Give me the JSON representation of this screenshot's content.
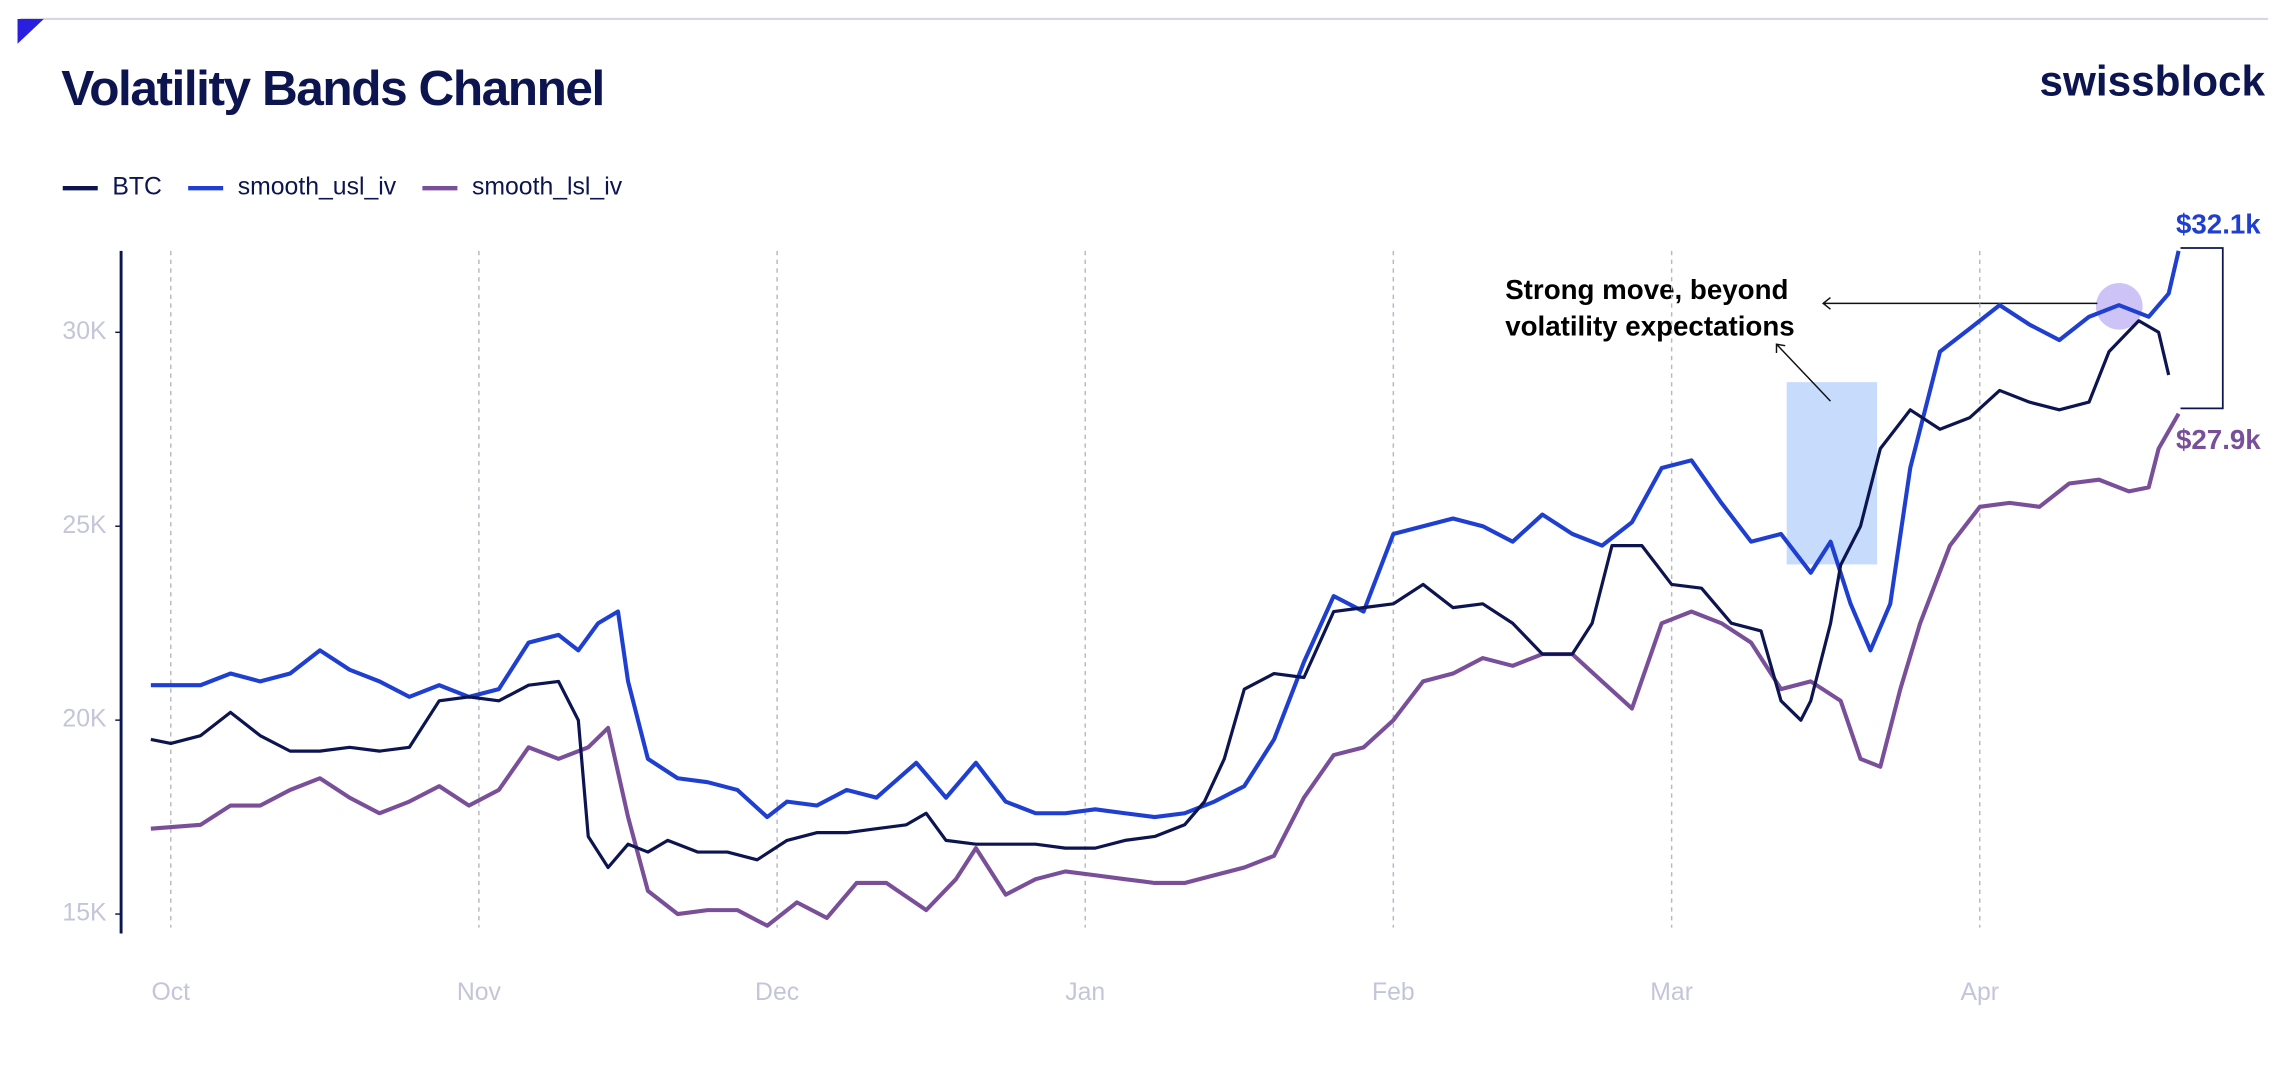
{
  "chart_data": {
    "type": "line",
    "title": "Volatility Bands Channel",
    "brand": "swissblock",
    "annotation": [
      "Strong move, beyond",
      "volatility expectations"
    ],
    "xlim": [
      -5,
      211
    ],
    "xticks": [
      {
        "value": 0,
        "label": "Oct"
      },
      {
        "value": 31,
        "label": "Nov"
      },
      {
        "value": 61,
        "label": "Dec"
      },
      {
        "value": 92,
        "label": "Jan"
      },
      {
        "value": 123,
        "label": "Feb"
      },
      {
        "value": 151,
        "label": "Mar"
      },
      {
        "value": 182,
        "label": "Apr"
      }
    ],
    "ylim": [
      14500,
      32100
    ],
    "yticks": [
      {
        "value": 15000,
        "label": "15K"
      },
      {
        "value": 20000,
        "label": "20K"
      },
      {
        "value": 25000,
        "label": "25K"
      },
      {
        "value": 30000,
        "label": "30K"
      }
    ],
    "grid": true,
    "legend": "top-left",
    "series": [
      {
        "name": "BTC",
        "color": "#0d1550",
        "x": [
          -2,
          0,
          3,
          6,
          9,
          12,
          15,
          18,
          21,
          24,
          27,
          30,
          33,
          36,
          39,
          41,
          42,
          44,
          46,
          48,
          50,
          53,
          56,
          59,
          62,
          65,
          68,
          71,
          74,
          76,
          78,
          81,
          84,
          87,
          90,
          93,
          96,
          99,
          102,
          104,
          106,
          108,
          111,
          114,
          117,
          120,
          123,
          126,
          129,
          132,
          135,
          138,
          141,
          143,
          145,
          148,
          151,
          154,
          157,
          160,
          162,
          164,
          165,
          167,
          168,
          170,
          172,
          175,
          178,
          181,
          184,
          187,
          190,
          193,
          195,
          198,
          200,
          201
        ],
        "values": [
          19500,
          19400,
          19600,
          20200,
          19600,
          19200,
          19200,
          19300,
          19200,
          19300,
          20500,
          20600,
          20500,
          20900,
          21000,
          20000,
          17000,
          16200,
          16800,
          16600,
          16900,
          16600,
          16600,
          16400,
          16900,
          17100,
          17100,
          17200,
          17300,
          17600,
          16900,
          16800,
          16800,
          16800,
          16700,
          16700,
          16900,
          17000,
          17300,
          17900,
          19000,
          20800,
          21200,
          21100,
          22800,
          22900,
          23000,
          23500,
          22900,
          23000,
          22500,
          21700,
          21700,
          22500,
          24500,
          24500,
          23500,
          23400,
          22500,
          22300,
          20500,
          20000,
          20500,
          22500,
          24000,
          25000,
          27000,
          28000,
          27500,
          27800,
          28500,
          28200,
          28000,
          28200,
          29500,
          30300,
          30000,
          28900
        ]
      },
      {
        "name": "smooth_usl_iv",
        "color": "#1f3fd0",
        "end_label": "$32.1k",
        "x": [
          -2,
          3,
          6,
          9,
          12,
          15,
          18,
          21,
          24,
          27,
          30,
          33,
          36,
          39,
          41,
          43,
          45,
          46,
          48,
          51,
          54,
          57,
          60,
          62,
          65,
          68,
          71,
          75,
          78,
          81,
          84,
          87,
          90,
          93,
          96,
          99,
          102,
          105,
          108,
          111,
          114,
          117,
          120,
          123,
          126,
          129,
          132,
          135,
          138,
          141,
          144,
          147,
          150,
          153,
          156,
          159,
          162,
          165,
          167,
          169,
          171,
          173,
          175,
          178,
          181,
          184,
          187,
          190,
          193,
          196,
          199,
          201,
          202
        ],
        "values": [
          20900,
          20900,
          21200,
          21000,
          21200,
          21800,
          21300,
          21000,
          20600,
          20900,
          20600,
          20800,
          22000,
          22200,
          21800,
          22500,
          22800,
          21000,
          19000,
          18500,
          18400,
          18200,
          17500,
          17900,
          17800,
          18200,
          18000,
          18900,
          18000,
          18900,
          17900,
          17600,
          17600,
          17700,
          17600,
          17500,
          17600,
          17900,
          18300,
          19500,
          21500,
          23200,
          22800,
          24800,
          25000,
          25200,
          25000,
          24600,
          25300,
          24800,
          24500,
          25100,
          26500,
          26700,
          25600,
          24600,
          24800,
          23800,
          24600,
          23000,
          21800,
          23000,
          26500,
          29500,
          30100,
          30700,
          30200,
          29800,
          30400,
          30700,
          30400,
          31000,
          32100
        ]
      },
      {
        "name": "smooth_lsl_iv",
        "color": "#7a4f9a",
        "end_label": "$27.9k",
        "x": [
          -2,
          3,
          6,
          9,
          12,
          15,
          18,
          21,
          24,
          27,
          30,
          33,
          36,
          39,
          42,
          44,
          46,
          48,
          51,
          54,
          57,
          60,
          63,
          66,
          69,
          72,
          76,
          79,
          81,
          84,
          87,
          90,
          93,
          96,
          99,
          102,
          105,
          108,
          111,
          114,
          117,
          120,
          123,
          126,
          129,
          132,
          135,
          138,
          141,
          144,
          147,
          150,
          153,
          156,
          159,
          162,
          165,
          168,
          170,
          172,
          174,
          176,
          179,
          182,
          185,
          188,
          191,
          194,
          197,
          199,
          200,
          202
        ],
        "values": [
          17200,
          17300,
          17800,
          17800,
          18200,
          18500,
          18000,
          17600,
          17900,
          18300,
          17800,
          18200,
          19300,
          19000,
          19300,
          19800,
          17500,
          15600,
          15000,
          15100,
          15100,
          14700,
          15300,
          14900,
          15800,
          15800,
          15100,
          15900,
          16700,
          15500,
          15900,
          16100,
          16000,
          15900,
          15800,
          15800,
          16000,
          16200,
          16500,
          18000,
          19100,
          19300,
          20000,
          21000,
          21200,
          21600,
          21400,
          21700,
          21700,
          21000,
          20300,
          22500,
          22800,
          22500,
          22000,
          20800,
          21000,
          20500,
          19000,
          18800,
          20800,
          22500,
          24500,
          25500,
          25600,
          25500,
          26100,
          26200,
          25900,
          26000,
          27000,
          27900
        ]
      }
    ]
  }
}
